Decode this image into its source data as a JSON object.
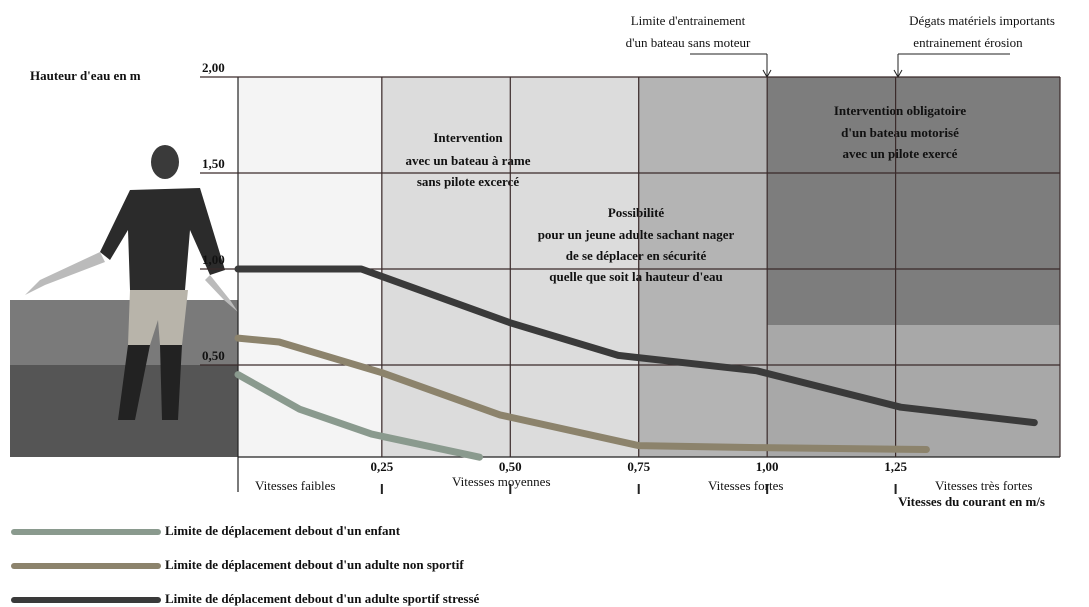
{
  "chart_data": {
    "type": "line",
    "y_label": "Hauteur d'eau en m",
    "x_label": "Vitesses du courant en m/s",
    "xlim": [
      -0.03,
      1.57
    ],
    "ylim": [
      0,
      2
    ],
    "xticks": [
      {
        "value": 0.25,
        "label": "0,25"
      },
      {
        "value": 0.5,
        "label": "0,50"
      },
      {
        "value": 0.75,
        "label": "0,75"
      },
      {
        "value": 1,
        "label": "1,00"
      },
      {
        "value": 1.25,
        "label": "1,25"
      }
    ],
    "yticks": [
      {
        "value": 0.5,
        "label": "0,50"
      },
      {
        "value": 1,
        "label": "1,00"
      },
      {
        "value": 1.5,
        "label": "1,50"
      },
      {
        "value": 2,
        "label": "2,00"
      }
    ],
    "speed_labels": [
      "Vitesses faibles",
      "Vitesses moyennes",
      "Vitesses fortes",
      "Vitesses très fortes"
    ],
    "annotations": [
      {
        "lines": [
          "Intervention",
          "avec un bateau à rame",
          "sans pilote excercé"
        ]
      },
      {
        "lines": [
          "Possibilité",
          "pour un jeune adulte sachant nager",
          "de se déplacer en sécurité",
          "quelle que soit la hauteur d'eau"
        ]
      },
      {
        "lines": [
          "Intervention obligatoire",
          "d'un bateau motorisé",
          "avec un pilote exercé"
        ]
      },
      {
        "lines": [
          "Limite d'entrainement",
          "d'un bateau sans moteur"
        ]
      },
      {
        "lines": [
          "Dégats matériels importants",
          "entrainement érosion"
        ]
      }
    ],
    "series": [
      {
        "name": "Limite de déplacement debout d'un enfant",
        "color": "#8a9a8e",
        "x": [
          -0.03,
          0.09,
          0.23,
          0.44
        ],
        "values": [
          0.45,
          0.27,
          0.14,
          0.02
        ]
      },
      {
        "name": "Limite de déplacement debout d'un adulte non sportif",
        "color": "#8c836c",
        "x": [
          -0.03,
          0.05,
          0.25,
          0.48,
          0.75,
          0.98,
          1.31
        ],
        "values": [
          0.64,
          0.62,
          0.46,
          0.24,
          0.08,
          0.07,
          0.06
        ]
      },
      {
        "name": "Limite de déplacement debout d'un adulte sportif stressé",
        "color": "#3a3a3a",
        "x": [
          -0.03,
          0.21,
          0.5,
          0.71,
          0.98,
          1.26,
          1.52
        ],
        "values": [
          1.0,
          1.0,
          0.72,
          0.55,
          0.47,
          0.28,
          0.2
        ]
      }
    ]
  }
}
